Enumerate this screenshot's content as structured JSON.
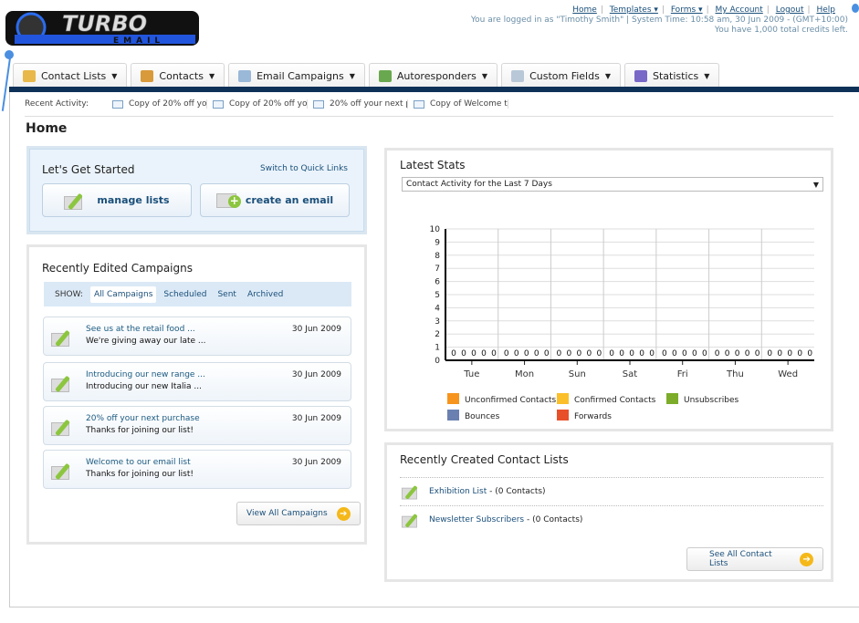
{
  "logo": {
    "text": "TURBO",
    "sub": "EMAIL"
  },
  "toplinks": {
    "items": [
      "Home",
      "Templates ▾",
      "Forms ▾",
      "My Account",
      "Logout",
      "Help"
    ],
    "logged": "You are logged in as \"Timothy Smith\" | System Time: 10:58 am, 30 Jun 2009 - (GMT+10:00)",
    "credits": "You have 1,000 total credits left."
  },
  "tabs": [
    {
      "label": "Contact Lists",
      "icon": "contact-lists-icon",
      "color": "#e8b84a"
    },
    {
      "label": "Contacts",
      "icon": "contacts-icon",
      "color": "#d89a3a"
    },
    {
      "label": "Email Campaigns",
      "icon": "email-icon",
      "color": "#9ab8d8"
    },
    {
      "label": "Autoresponders",
      "icon": "autoresponder-icon",
      "color": "#6aa84f"
    },
    {
      "label": "Custom Fields",
      "icon": "custom-fields-icon",
      "color": "#b8c8d8"
    },
    {
      "label": "Statistics",
      "icon": "statistics-icon",
      "color": "#7a68c8"
    }
  ],
  "recent": {
    "label": "Recent Activity:",
    "items": [
      "Copy of 20% off yo",
      "Copy of 20% off yo",
      "20% off your next p",
      "Copy of Welcome to"
    ]
  },
  "page_title": "Home",
  "getstarted": {
    "title": "Let's Get Started",
    "switch": "Switch to Quick Links",
    "manage": "manage lists",
    "create": "create an email"
  },
  "campaigns": {
    "title": "Recently Edited Campaigns",
    "show_label": "SHOW:",
    "filters": [
      "All Campaigns",
      "Scheduled",
      "Sent",
      "Archived"
    ],
    "items": [
      {
        "title": "See us at the retail food ...",
        "subject": "We're giving away our late ...",
        "date": "30 Jun 2009"
      },
      {
        "title": "Introducing our new range ...",
        "subject": "Introducing our new Italia ...",
        "date": "30 Jun 2009"
      },
      {
        "title": "20% off your next purchase",
        "subject": "Thanks for joining our list!",
        "date": "30 Jun 2009"
      },
      {
        "title": "Welcome to our email list",
        "subject": "Thanks for joining our list!",
        "date": "30 Jun 2009"
      }
    ],
    "view_all": "View All Campaigns"
  },
  "stats": {
    "title": "Latest Stats",
    "select": "Contact Activity for the Last 7 Days"
  },
  "chart_data": {
    "type": "bar",
    "categories": [
      "Tue",
      "Mon",
      "Sun",
      "Sat",
      "Fri",
      "Thu",
      "Wed"
    ],
    "ylim": [
      0,
      10
    ],
    "yticks": [
      0,
      1,
      2,
      3,
      4,
      5,
      6,
      7,
      8,
      9,
      10
    ],
    "grid": true,
    "legend_placement": "bottom",
    "series": [
      {
        "name": "Unconfirmed Contacts",
        "color": "#f7941d",
        "values": [
          0,
          0,
          0,
          0,
          0,
          0,
          0
        ]
      },
      {
        "name": "Confirmed Contacts",
        "color": "#fbbf2a",
        "values": [
          0,
          0,
          0,
          0,
          0,
          0,
          0
        ]
      },
      {
        "name": "Unsubscribes",
        "color": "#7cac2a",
        "values": [
          0,
          0,
          0,
          0,
          0,
          0,
          0
        ]
      },
      {
        "name": "Bounces",
        "color": "#6a80b0",
        "values": [
          0,
          0,
          0,
          0,
          0,
          0,
          0
        ]
      },
      {
        "name": "Forwards",
        "color": "#e8502a",
        "values": [
          0,
          0,
          0,
          0,
          0,
          0,
          0
        ]
      }
    ]
  },
  "lists": {
    "title": "Recently Created Contact Lists",
    "items": [
      {
        "name": "Exhibition List",
        "count": " - (0 Contacts)"
      },
      {
        "name": "Newsletter Subscribers",
        "count": " - (0 Contacts)"
      }
    ],
    "see_all": "See All Contact Lists"
  }
}
